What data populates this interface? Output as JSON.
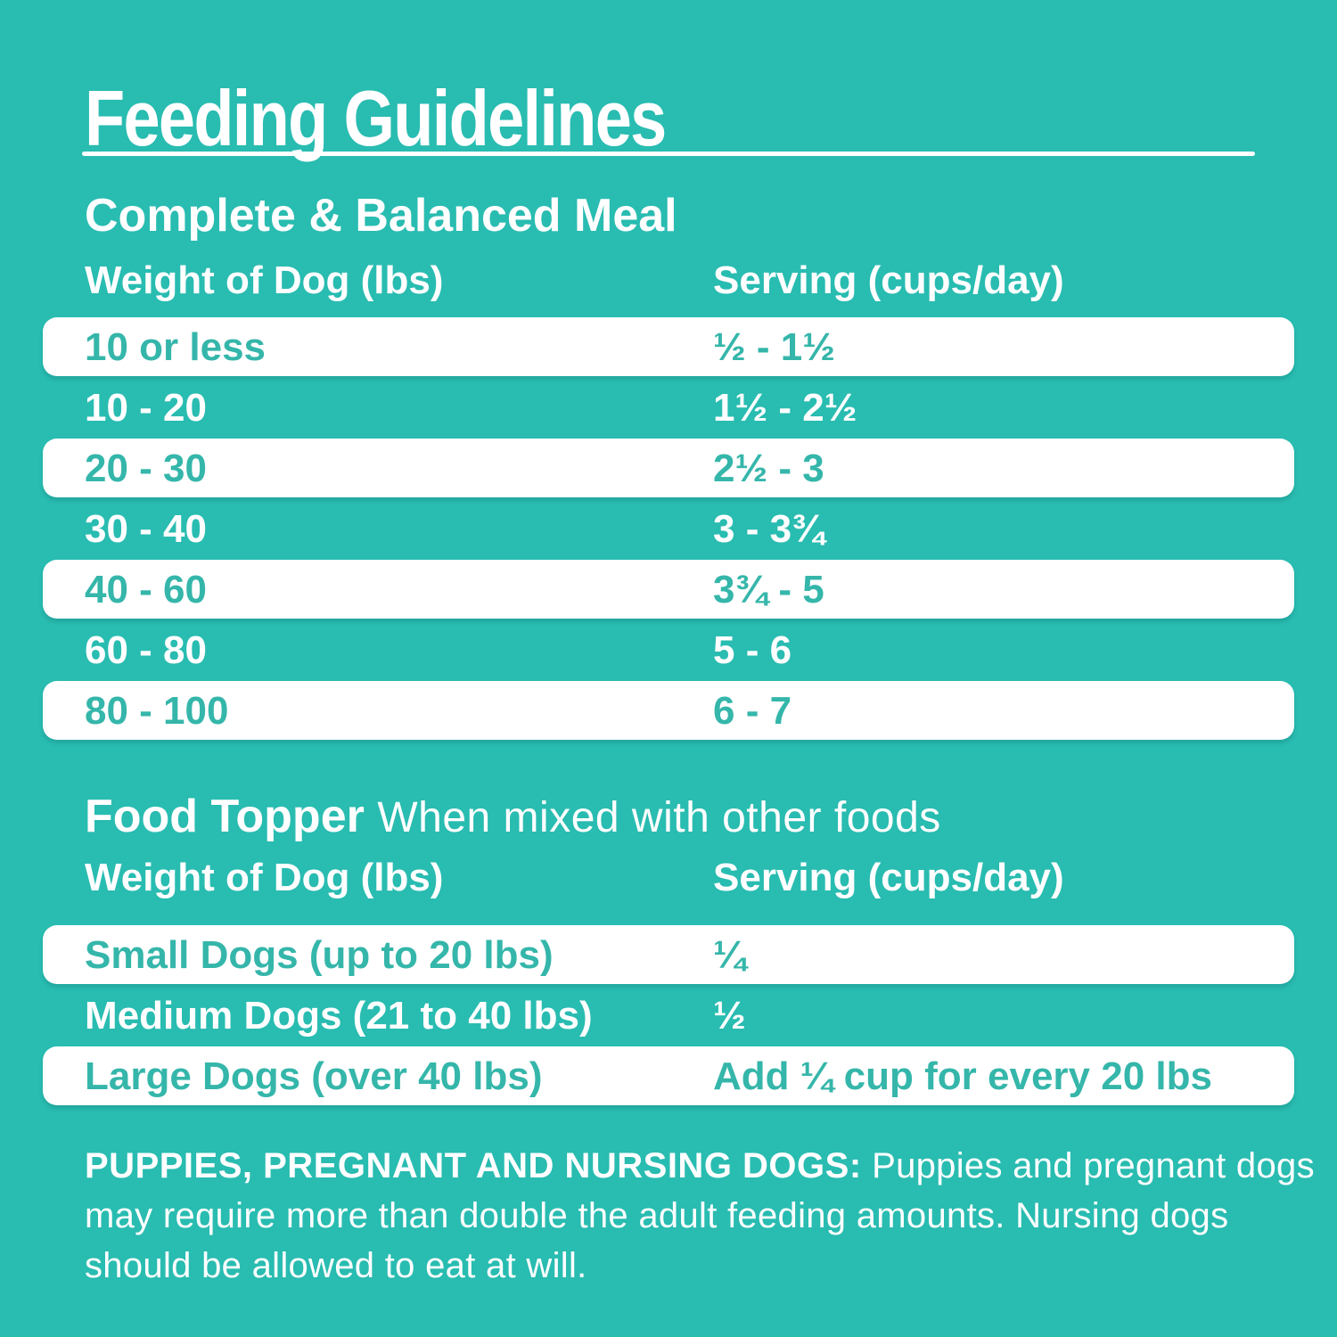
{
  "page": {
    "title": "Feeding Guidelines",
    "background_color": "#29bcb1",
    "row_text_color": "#35b6aa",
    "text_color": "#ffffff"
  },
  "meal_table": {
    "section_title": "Complete & Balanced Meal",
    "columns": [
      "Weight of Dog (lbs)",
      "Serving (cups/day)"
    ],
    "rows": [
      {
        "weight": "10 or less",
        "serving": "½ - 1½"
      },
      {
        "weight": "10 - 20",
        "serving": "1½ - 2½"
      },
      {
        "weight": "20 - 30",
        "serving": "2½ - 3"
      },
      {
        "weight": "30 - 40",
        "serving": "3 - 3¾"
      },
      {
        "weight": "40 - 60",
        "serving": "3¾ - 5"
      },
      {
        "weight": "60 - 80",
        "serving": "5 - 6"
      },
      {
        "weight": "80 - 100",
        "serving": "6 - 7"
      }
    ]
  },
  "topper_table": {
    "section_title": "Food Topper",
    "section_subtitle": "When mixed with other foods",
    "columns": [
      "Weight of Dog (lbs)",
      "Serving (cups/day)"
    ],
    "rows": [
      {
        "weight": "Small Dogs (up to 20 lbs)",
        "serving": "¼"
      },
      {
        "weight": "Medium Dogs (21 to 40 lbs)",
        "serving": "½"
      },
      {
        "weight": "Large Dogs (over 40 lbs)",
        "serving": "Add ¼ cup for every 20 lbs"
      }
    ]
  },
  "footnote": {
    "bold": "PUPPIES, PREGNANT AND NURSING DOGS:",
    "text": "Puppies and pregnant dogs may require more than double the adult feeding amounts. Nursing dogs should be allowed to eat at will."
  }
}
